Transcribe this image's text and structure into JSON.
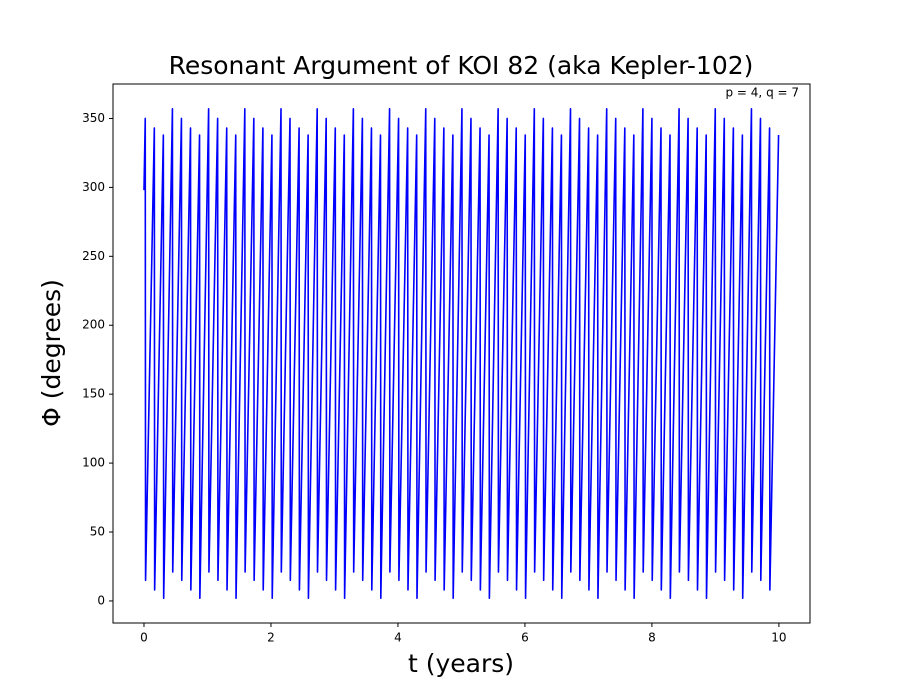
{
  "chart_data": {
    "type": "line",
    "title": "Resonant Argument of KOI 82 (aka Kepler-102)",
    "annotation": "p = 4, q = 7",
    "xlabel": "t (years)",
    "ylabel": "Φ (degrees)",
    "x": [
      0,
      0.02,
      0.025,
      0.163,
      0.168,
      0.305,
      0.31,
      0.448,
      0.453,
      0.59,
      0.595,
      0.733,
      0.738,
      0.875,
      0.88,
      1.018,
      1.023,
      1.16,
      1.165,
      1.303,
      1.308,
      1.445,
      1.45,
      1.588,
      1.593,
      1.73,
      1.735,
      1.873,
      1.878,
      2.015,
      2.02,
      2.158,
      2.163,
      2.3,
      2.305,
      2.443,
      2.448,
      2.585,
      2.59,
      2.728,
      2.733,
      2.87,
      2.875,
      3.013,
      3.018,
      3.155,
      3.16,
      3.298,
      3.303,
      3.44,
      3.445,
      3.583,
      3.588,
      3.725,
      3.73,
      3.868,
      3.873,
      4.01,
      4.015,
      4.153,
      4.158,
      4.295,
      4.3,
      4.438,
      4.443,
      4.58,
      4.585,
      4.723,
      4.728,
      4.865,
      4.87,
      5.008,
      5.013,
      5.15,
      5.155,
      5.293,
      5.298,
      5.435,
      5.44,
      5.578,
      5.583,
      5.72,
      5.725,
      5.863,
      5.868,
      6.005,
      6.01,
      6.148,
      6.153,
      6.29,
      6.295,
      6.433,
      6.438,
      6.575,
      6.58,
      6.718,
      6.723,
      6.86,
      6.865,
      7.003,
      7.008,
      7.145,
      7.15,
      7.288,
      7.293,
      7.43,
      7.435,
      7.573,
      7.578,
      7.715,
      7.72,
      7.858,
      7.863,
      8.0,
      8.005,
      8.143,
      8.148,
      8.285,
      8.29,
      8.428,
      8.433,
      8.57,
      8.575,
      8.713,
      8.718,
      8.855,
      8.86,
      8.998,
      9.003,
      9.14,
      9.145,
      9.283,
      9.288,
      9.425,
      9.43,
      9.568,
      9.573,
      9.71,
      9.715,
      9.853,
      9.858,
      9.995
    ],
    "series": [
      {
        "color": "#0000ff",
        "values": [
          298,
          350,
          15,
          343,
          8,
          338,
          2,
          357,
          21,
          350,
          15,
          343,
          8,
          338,
          2,
          357,
          21,
          350,
          15,
          343,
          8,
          338,
          2,
          357,
          21,
          350,
          15,
          343,
          8,
          338,
          2,
          357,
          21,
          350,
          15,
          343,
          8,
          338,
          2,
          357,
          21,
          350,
          15,
          343,
          8,
          338,
          2,
          357,
          21,
          350,
          15,
          343,
          8,
          338,
          2,
          357,
          21,
          350,
          15,
          343,
          8,
          338,
          2,
          357,
          21,
          350,
          15,
          343,
          8,
          338,
          2,
          357,
          21,
          350,
          15,
          343,
          8,
          338,
          2,
          357,
          21,
          350,
          15,
          343,
          8,
          338,
          2,
          357,
          21,
          350,
          15,
          343,
          8,
          338,
          2,
          357,
          21,
          350,
          15,
          343,
          8,
          338,
          2,
          357,
          21,
          350,
          15,
          343,
          8,
          338,
          2,
          357,
          21,
          350,
          15,
          343,
          8,
          338,
          2,
          357,
          21,
          350,
          15,
          343,
          8,
          338,
          2,
          357,
          21,
          350,
          15,
          343,
          8,
          338,
          2,
          357,
          21,
          350,
          15,
          343,
          8,
          338
        ]
      }
    ],
    "xlim": [
      -0.488,
      10.49
    ],
    "xticks": [
      0,
      2,
      4,
      6,
      8,
      10
    ],
    "ylim": [
      -16,
      375
    ],
    "yticks": [
      0,
      50,
      100,
      150,
      200,
      250,
      300,
      350
    ]
  }
}
